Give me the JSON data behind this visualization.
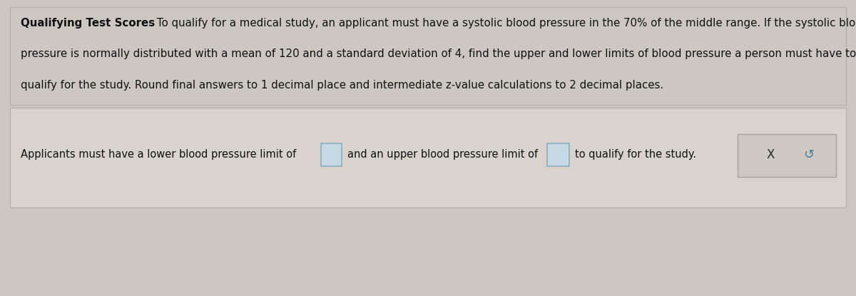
{
  "bg_color": "#ccc7c1",
  "top_section_bg": "#ccc7c1",
  "top_section_border": "#b5b0aa",
  "answer_box_bg": "#d8d3cd",
  "answer_box_border": "#b5b0aa",
  "input_box_color": "#c5dae3",
  "input_box_border": "#8ab0be",
  "button_bg": "#cdc8c2",
  "button_border": "#aaa49e",
  "title_bold": "Qualifying Test Scores",
  "title_rest": " To qualify for a medical study, an applicant must have a systolic blood pressure in the 70% of the middle range. If the systolic blood",
  "line2": "pressure is normally distributed with a mean of 120 and a standard deviation of 4, find the upper and lower limits of blood pressure a person must have to",
  "line3": "qualify for the study. Round final answers to 1 decimal place and intermediate z-value calculations to 2 decimal places.",
  "answer_line": "Applicants must have a lower blood pressure limit of",
  "answer_mid": "and an upper blood pressure limit of",
  "answer_end": "to qualify for the study.",
  "x_symbol": "X",
  "undo_symbol": "↺",
  "font_size_body": 10.8,
  "font_size_answer": 10.5,
  "font_size_btn": 12
}
